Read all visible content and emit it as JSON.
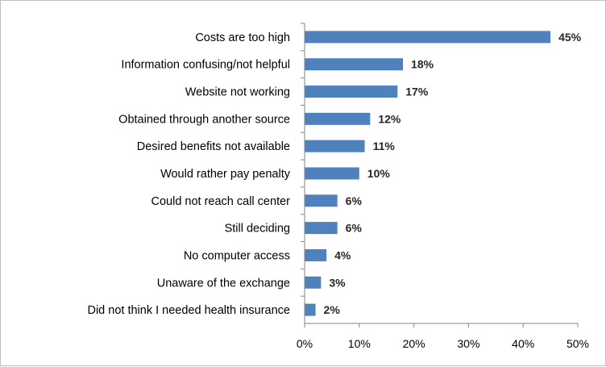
{
  "chart_data": {
    "type": "bar",
    "orientation": "horizontal",
    "title": "",
    "xlabel": "",
    "ylabel": "",
    "categories": [
      "Costs are too high",
      "Information confusing/not helpful",
      "Website not working",
      "Obtained through another source",
      "Desired benefits not available",
      "Would rather pay penalty",
      "Could not reach call center",
      "Still deciding",
      "No computer access",
      "Unaware of the exchange",
      "Did not think I needed health insurance"
    ],
    "values": [
      45,
      18,
      17,
      12,
      11,
      10,
      6,
      6,
      4,
      3,
      2
    ],
    "data_labels": [
      "45%",
      "18%",
      "17%",
      "12%",
      "11%",
      "10%",
      "6%",
      "6%",
      "4%",
      "3%",
      "2%"
    ],
    "xlim": [
      0,
      50
    ],
    "x_ticks": [
      0,
      10,
      20,
      30,
      40,
      50
    ],
    "x_tick_labels": [
      "0%",
      "10%",
      "20%",
      "30%",
      "40%",
      "50%"
    ],
    "grid": false,
    "legend": "none",
    "bar_color": "#4f81bd",
    "axis_color": "#868686"
  }
}
